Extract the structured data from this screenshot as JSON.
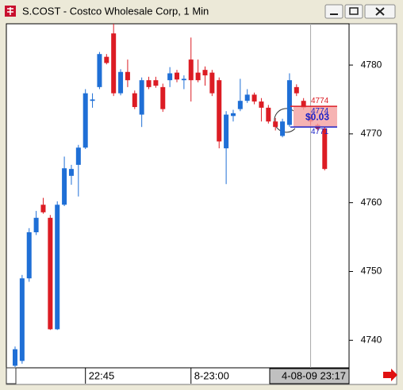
{
  "window_title": "S.COST - Costco Wholesale Corp, 1 Min",
  "chart_data": {
    "type": "candlestick",
    "categories": [
      null,
      null,
      null,
      null,
      null,
      null,
      null,
      null,
      null,
      null,
      "22:45",
      null,
      null,
      null,
      null,
      null,
      null,
      null,
      null,
      null,
      null,
      null,
      null,
      null,
      null,
      "8-23:00",
      null,
      null,
      null,
      null,
      null,
      null,
      null,
      null,
      null,
      null,
      null,
      null,
      null,
      null,
      null,
      null,
      "4-08-09 23:17",
      null,
      null
    ],
    "open": [
      4736.3,
      4737,
      4749,
      4755.7,
      4759.7,
      4757.8,
      4741.6,
      4759.7,
      4763.9,
      4765.5,
      4768,
      4774.8,
      4776.8,
      4781.2,
      4784.6,
      4775.9,
      4779,
      4775.9,
      4772.8,
      4777.8,
      4777.8,
      4776.8,
      4777.8,
      4778.9,
      4777.8,
      4780.8,
      4778.9,
      4779.3,
      4778.9,
      4777.8,
      4767.9,
      4772.6,
      4773.6,
      4774.8,
      4775.7,
      4774.7,
      4773.8,
      4771.8,
      4769.7,
      4771.3,
      4776.8,
      4774.8,
      4772.6,
      4771.3,
      4770.8
    ],
    "high": [
      4739.1,
      4749.5,
      4756.3,
      4758.8,
      4760.7,
      4758.2,
      4760.2,
      4766.7,
      4765.5,
      4768.4,
      4776.5,
      4775.9,
      4781.9,
      4781.6,
      4786,
      4779.4,
      4780.8,
      4776.3,
      4778.2,
      4778.3,
      4778.3,
      4777.3,
      4779.7,
      4779.3,
      4778.5,
      4784,
      4780.8,
      4779.8,
      4779.3,
      4778.2,
      4773.3,
      4773.5,
      4778,
      4776.5,
      4776,
      4775.2,
      4774.2,
      4772.3,
      4772.2,
      4778.8,
      4777.2,
      4775.2,
      4773,
      4771.5,
      4771
    ],
    "low": [
      4736.1,
      4736.6,
      4748.5,
      4755.3,
      4758.4,
      4741.5,
      4741.5,
      4759.5,
      4762.6,
      4760.9,
      4767.8,
      4773.8,
      4776.5,
      4780.1,
      4775.5,
      4775.6,
      4776.8,
      4773.6,
      4771,
      4776.5,
      4776.7,
      4773.2,
      4776.8,
      4777.5,
      4776.5,
      4774.7,
      4777.5,
      4777,
      4775.5,
      4767.9,
      4762.7,
      4771.8,
      4773.3,
      4774.5,
      4774.3,
      4771.8,
      4771.5,
      4770.5,
      4769.5,
      4771,
      4775.5,
      4773.5,
      4771.3,
      4770.5,
      4764.7
    ],
    "close": [
      4738.7,
      4749,
      4755.7,
      4757.8,
      4758.6,
      4741.6,
      4759.7,
      4765,
      4764.9,
      4768,
      4775.9,
      4775,
      4781.6,
      4780.3,
      4775.9,
      4779,
      4777.8,
      4773.9,
      4777.8,
      4776.8,
      4777,
      4773.6,
      4778.8,
      4777.9,
      4778,
      4777.8,
      4777.8,
      4778.5,
      4775.9,
      4768.9,
      4772.8,
      4773,
      4774.8,
      4775.7,
      4774.7,
      4773.8,
      4771.8,
      4771,
      4771.8,
      4777.8,
      4775.9,
      4773.8,
      4771.8,
      4770.8,
      4764.9
    ],
    "up_color": "#1f6fd6",
    "down_color": "#dc1c24",
    "ylim": [
      4736,
      4786
    ],
    "yticks": [
      4740,
      4750,
      4760,
      4770,
      4780
    ],
    "levels": [
      {
        "value": 4774,
        "color": "#dc1c24"
      },
      {
        "value": 4774,
        "color": "#1a22c8"
      },
      {
        "value": 4771,
        "color": "#1a22c8"
      }
    ],
    "pl_label": "$0.03"
  }
}
